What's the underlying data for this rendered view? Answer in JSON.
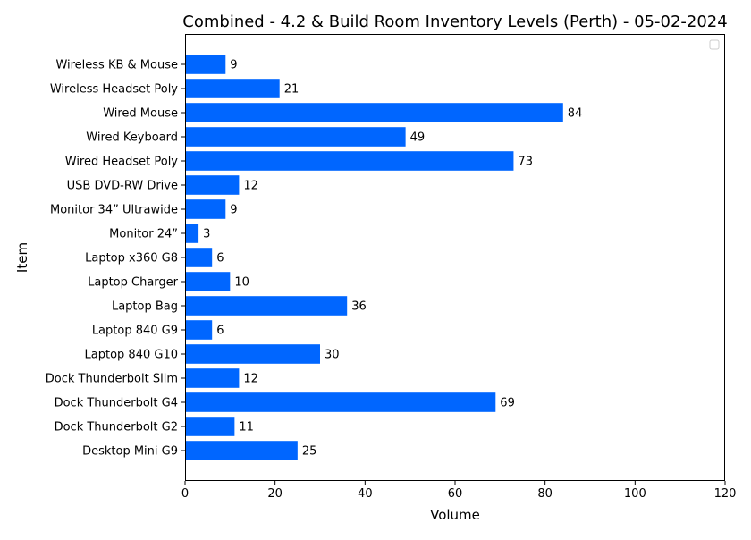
{
  "chart_data": {
    "type": "bar",
    "orientation": "horizontal",
    "title": "Combined - 4.2 & Build Room Inventory Levels (Perth) - 05-02-2024",
    "xlabel": "Volume",
    "ylabel": "Item",
    "xlim": [
      0,
      120
    ],
    "xticks": [
      0,
      20,
      40,
      60,
      80,
      100,
      120
    ],
    "categories": [
      "Desktop Mini G9",
      "Dock Thunderbolt G2",
      "Dock Thunderbolt G4",
      "Dock Thunderbolt Slim",
      "Laptop 840 G10",
      "Laptop 840 G9",
      "Laptop Bag",
      "Laptop Charger ",
      "Laptop x360 G8",
      "Monitor 24” ",
      "Monitor 34” Ultrawide",
      "USB DVD-RW Drive",
      "Wired Headset Poly",
      "Wired Keyboard",
      "Wired Mouse",
      "Wireless Headset Poly ",
      "Wireless KB & Mouse"
    ],
    "values": [
      25,
      11,
      69,
      12,
      30,
      6,
      36,
      10,
      6,
      3,
      9,
      12,
      73,
      49,
      84,
      21,
      9
    ],
    "bar_color": "#0066ff",
    "data_labels": true,
    "grid": false,
    "legend": "top-right, empty"
  }
}
